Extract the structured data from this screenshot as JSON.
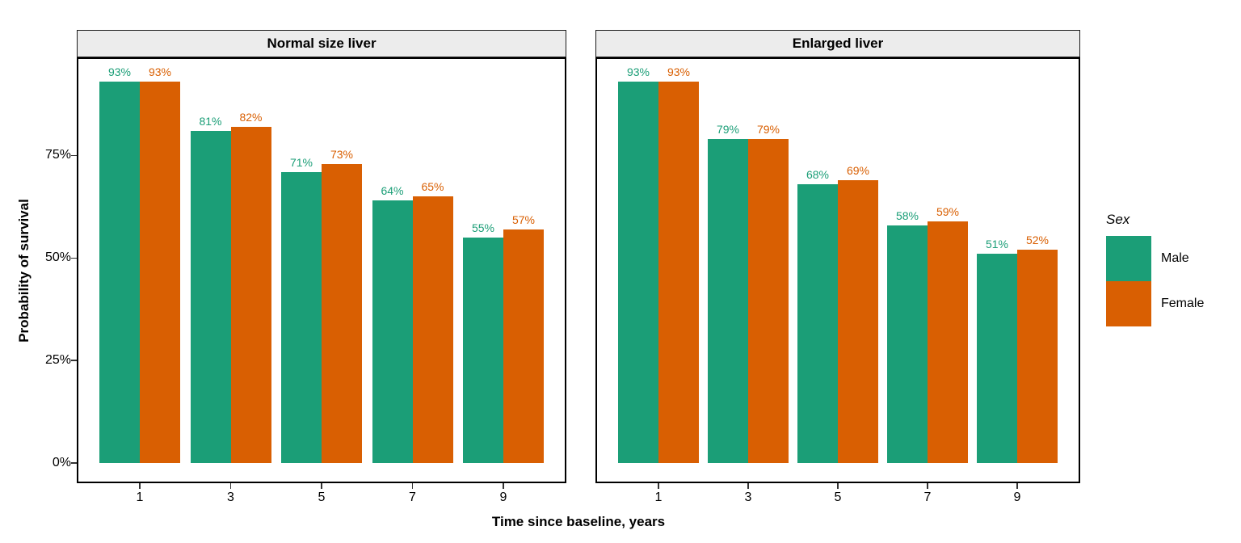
{
  "legend": {
    "title": "Sex",
    "entries": [
      {
        "label": "Male",
        "color": "#1B9E77"
      },
      {
        "label": "Female",
        "color": "#D95F02"
      }
    ]
  },
  "chart_data": {
    "type": "bar",
    "title": "",
    "xlabel": "Time since baseline, years",
    "ylabel": "Probability of survival",
    "ylim": [
      0,
      100
    ],
    "grid": false,
    "legend_position": "right",
    "x_ticks": [
      "1",
      "3",
      "5",
      "7",
      "9"
    ],
    "y_ticks": [
      {
        "label": "0%",
        "value": 0
      },
      {
        "label": "25%",
        "value": 25
      },
      {
        "label": "50%",
        "value": 50
      },
      {
        "label": "75%",
        "value": 75
      }
    ],
    "facets": [
      {
        "title": "Normal size liver",
        "categories": [
          1,
          3,
          5,
          7,
          9
        ],
        "series": [
          {
            "name": "Male",
            "color": "#1B9E77",
            "values": [
              93,
              81,
              71,
              64,
              55
            ],
            "labels": [
              "93%",
              "81%",
              "71%",
              "64%",
              "55%"
            ]
          },
          {
            "name": "Female",
            "color": "#D95F02",
            "values": [
              93,
              82,
              73,
              65,
              57
            ],
            "labels": [
              "93%",
              "82%",
              "73%",
              "65%",
              "57%"
            ]
          }
        ]
      },
      {
        "title": "Enlarged liver",
        "categories": [
          1,
          3,
          5,
          7,
          9
        ],
        "series": [
          {
            "name": "Male",
            "color": "#1B9E77",
            "values": [
              93,
              79,
              68,
              58,
              51
            ],
            "labels": [
              "93%",
              "79%",
              "68%",
              "58%",
              "51%"
            ]
          },
          {
            "name": "Female",
            "color": "#D95F02",
            "values": [
              93,
              79,
              69,
              59,
              52
            ],
            "labels": [
              "93%",
              "79%",
              "69%",
              "59%",
              "52%"
            ]
          }
        ]
      }
    ]
  }
}
